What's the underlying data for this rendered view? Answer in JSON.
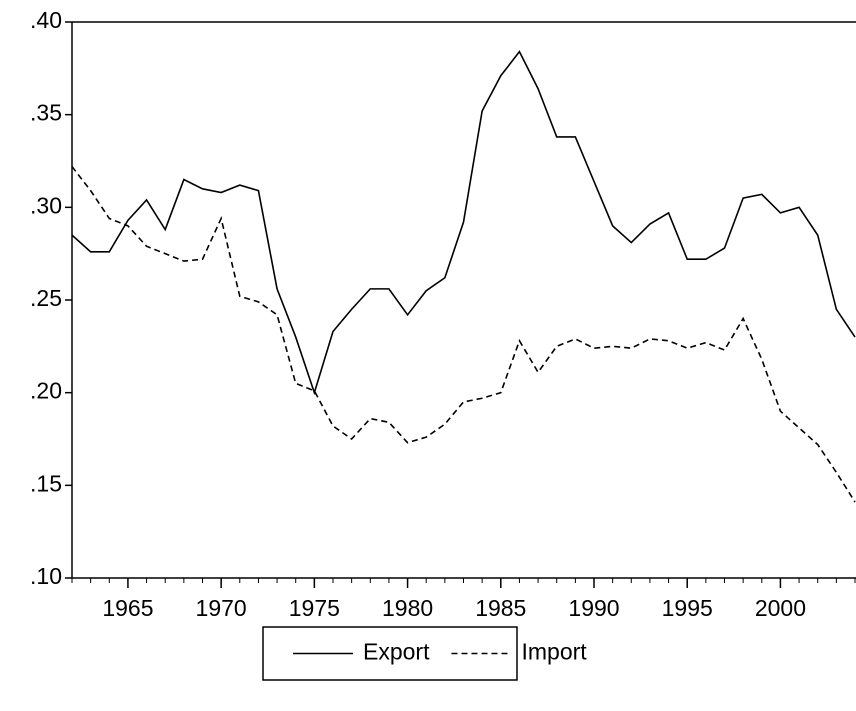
{
  "chart_data": {
    "type": "line",
    "x": [
      1962,
      1963,
      1964,
      1965,
      1966,
      1967,
      1968,
      1969,
      1970,
      1971,
      1972,
      1973,
      1974,
      1975,
      1976,
      1977,
      1978,
      1979,
      1980,
      1981,
      1982,
      1983,
      1984,
      1985,
      1986,
      1987,
      1988,
      1989,
      1990,
      1991,
      1992,
      1993,
      1994,
      1995,
      1996,
      1997,
      1998,
      1999,
      2000,
      2001,
      2002,
      2003,
      2004
    ],
    "series": [
      {
        "name": "Export",
        "color": "#000000",
        "line_style": "solid",
        "values": [
          0.285,
          0.276,
          0.276,
          0.293,
          0.304,
          0.288,
          0.315,
          0.31,
          0.308,
          0.312,
          0.309,
          0.256,
          0.23,
          0.2,
          0.233,
          0.245,
          0.256,
          0.256,
          0.242,
          0.255,
          0.262,
          0.292,
          0.352,
          0.371,
          0.384,
          0.364,
          0.338,
          0.338,
          0.314,
          0.29,
          0.281,
          0.291,
          0.297,
          0.272,
          0.272,
          0.278,
          0.305,
          0.307,
          0.297,
          0.3,
          0.285,
          0.245,
          0.23
        ]
      },
      {
        "name": "Import",
        "color": "#000000",
        "line_style": "dashed",
        "values": [
          0.322,
          0.309,
          0.294,
          0.29,
          0.279,
          0.275,
          0.271,
          0.272,
          0.294,
          0.252,
          0.249,
          0.242,
          0.205,
          0.201,
          0.182,
          0.175,
          0.186,
          0.184,
          0.173,
          0.176,
          0.183,
          0.195,
          0.197,
          0.2,
          0.228,
          0.211,
          0.225,
          0.229,
          0.224,
          0.225,
          0.224,
          0.229,
          0.228,
          0.224,
          0.227,
          0.223,
          0.24,
          0.218,
          0.19,
          0.181,
          0.172,
          0.157,
          0.141
        ]
      }
    ],
    "xlim": [
      1962,
      2004
    ],
    "xticks": [
      1965,
      1970,
      1975,
      1980,
      1985,
      1990,
      1995,
      2000
    ],
    "ylim": [
      0.1,
      0.4
    ],
    "yticks": [
      {
        "value": 0.1,
        "label": ".10"
      },
      {
        "value": 0.15,
        "label": ".15"
      },
      {
        "value": 0.2,
        "label": ".20"
      },
      {
        "value": 0.25,
        "label": ".25"
      },
      {
        "value": 0.3,
        "label": ".30"
      },
      {
        "value": 0.35,
        "label": ".35"
      },
      {
        "value": 0.4,
        "label": ".40"
      }
    ],
    "legend": "bottom"
  }
}
